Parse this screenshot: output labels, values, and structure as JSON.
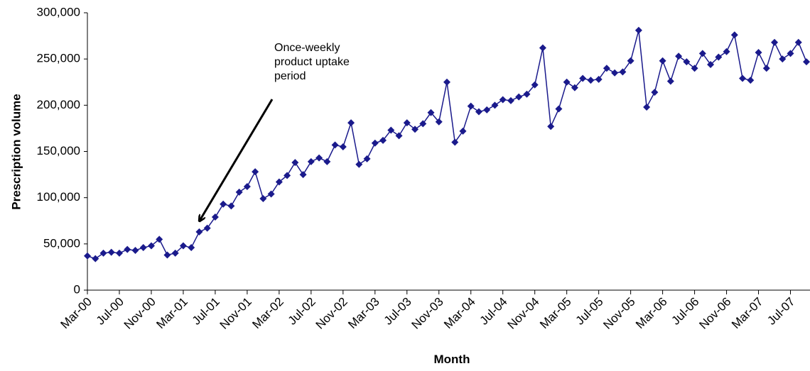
{
  "chart_data": {
    "type": "line",
    "y_label": "Prescription volume",
    "x_label": "Month",
    "annotation": [
      "Once-weekly",
      "product uptake",
      "period"
    ],
    "categories": [
      "Mar-00",
      null,
      null,
      null,
      "Jul-00",
      null,
      null,
      null,
      "Nov-00",
      null,
      null,
      null,
      "Mar-01",
      null,
      null,
      null,
      "Jul-01",
      null,
      null,
      null,
      "Nov-01",
      null,
      null,
      null,
      "Mar-02",
      null,
      null,
      null,
      "Jul-02",
      null,
      null,
      null,
      "Nov-02",
      null,
      null,
      null,
      "Mar-03",
      null,
      null,
      null,
      "Jul-03",
      null,
      null,
      null,
      "Nov-03",
      null,
      null,
      null,
      "Mar-04",
      null,
      null,
      null,
      "Jul-04",
      null,
      null,
      null,
      "Nov-04",
      null,
      null,
      null,
      "Mar-05",
      null,
      null,
      null,
      "Jul-05",
      null,
      null,
      null,
      "Nov-05",
      null,
      null,
      null,
      "Mar-06",
      null,
      null,
      null,
      "Jul-06",
      null,
      null,
      null,
      "Nov-06",
      null,
      null,
      null,
      "Mar-07",
      null,
      null,
      null,
      "Jul-07",
      null,
      null
    ],
    "series": [
      {
        "name": "Prescription volume",
        "color": "#1a1a8c",
        "values": [
          37000,
          34000,
          40000,
          41000,
          40000,
          44000,
          43000,
          46000,
          48000,
          55000,
          38000,
          40000,
          48000,
          46000,
          63000,
          67000,
          79000,
          93000,
          91000,
          106000,
          112000,
          128000,
          99000,
          104000,
          117000,
          124000,
          138000,
          125000,
          139000,
          143000,
          139000,
          157000,
          155000,
          181000,
          136000,
          142000,
          159000,
          162000,
          173000,
          167000,
          181000,
          174000,
          180000,
          192000,
          182000,
          225000,
          160000,
          172000,
          199000,
          193000,
          195000,
          200000,
          206000,
          205000,
          209000,
          212000,
          222000,
          262000,
          177000,
          196000,
          225000,
          219000,
          229000,
          227000,
          228000,
          240000,
          235000,
          236000,
          248000,
          281000,
          198000,
          214000,
          248000,
          226000,
          253000,
          247000,
          240000,
          256000,
          244000,
          252000,
          258000,
          276000,
          229000,
          227000,
          257000,
          240000,
          268000,
          250000,
          256000,
          268000,
          247000
        ]
      }
    ],
    "ylim": [
      0,
      300000
    ],
    "yticks": [
      0,
      {
        "value": 50000,
        "label": "50,000"
      },
      {
        "value": 100000,
        "label": "100,000"
      },
      {
        "value": 150000,
        "label": "150,000"
      },
      {
        "value": 200000,
        "label": "200,000"
      },
      {
        "value": 250000,
        "label": "250,000"
      },
      {
        "value": 300000,
        "label": "300,000"
      }
    ]
  }
}
